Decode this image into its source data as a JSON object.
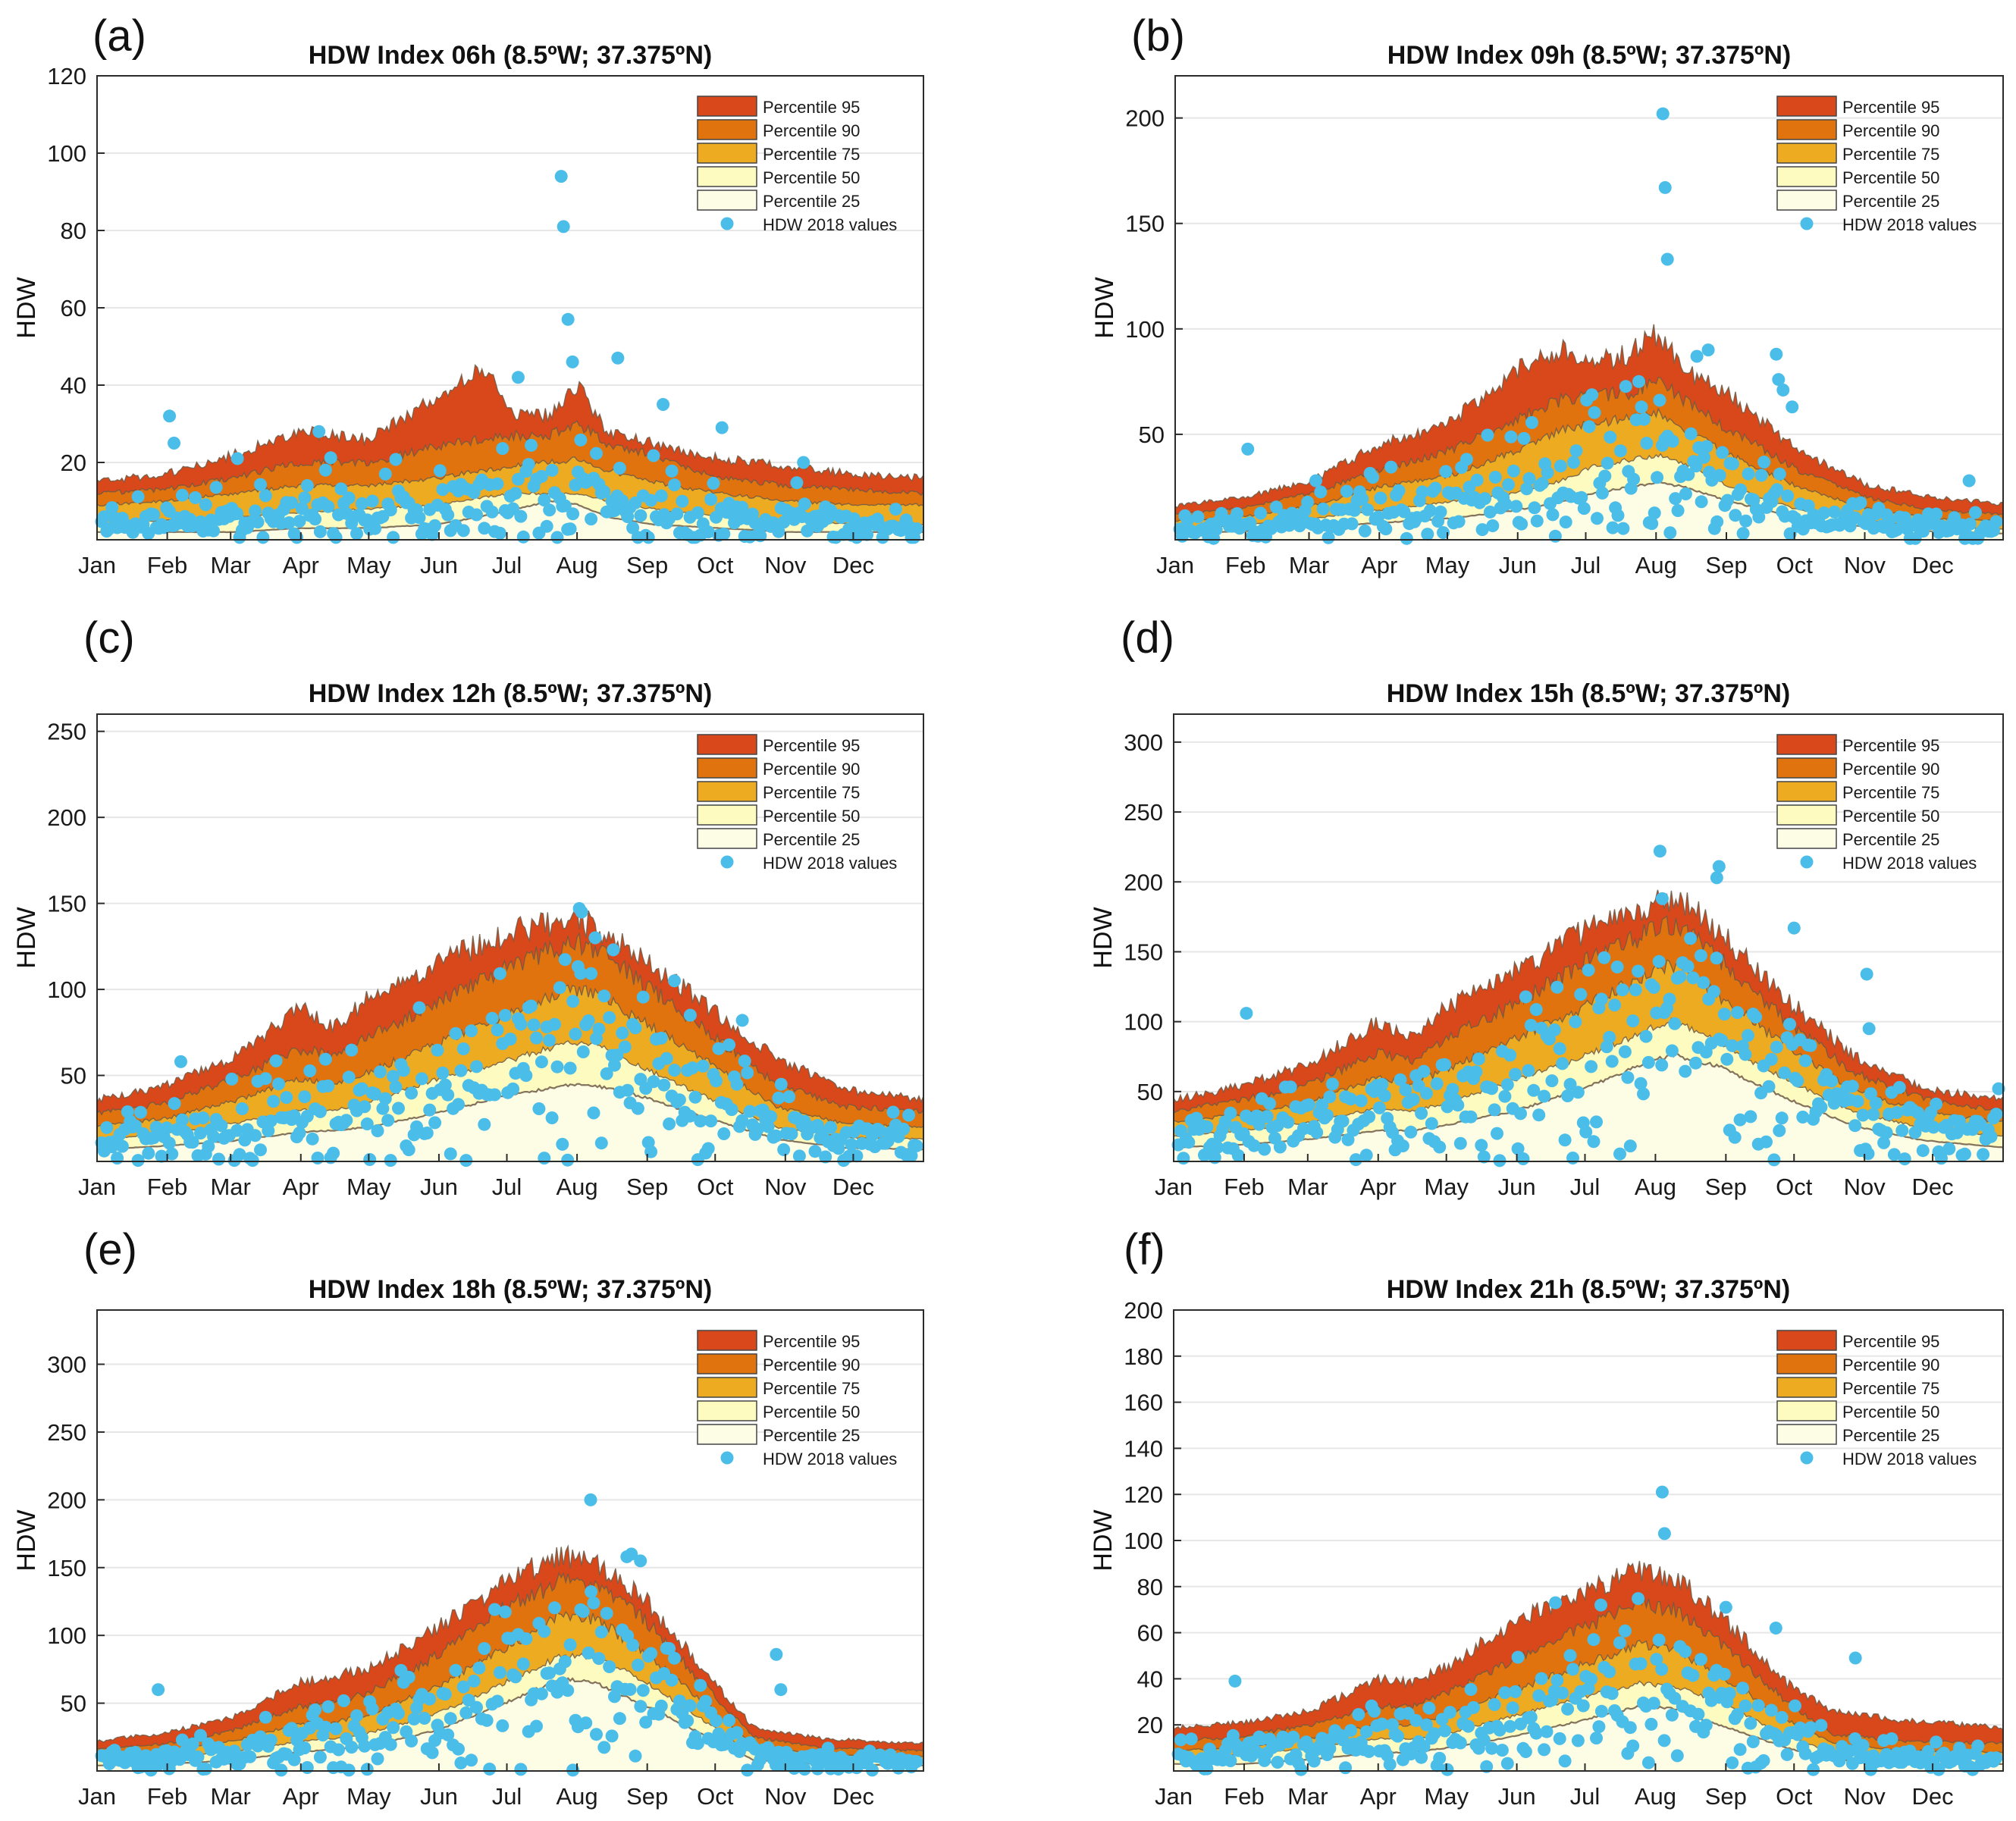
{
  "figure": {
    "months": [
      "Jan",
      "Feb",
      "Mar",
      "Apr",
      "May",
      "Jun",
      "Jul",
      "Aug",
      "Sep",
      "Oct",
      "Nov",
      "Dec"
    ],
    "ylabel": "HDW",
    "legend": [
      "Percentile 95",
      "Percentile 90",
      "Percentile 75",
      "Percentile 50",
      "Percentile 25",
      "HDW 2018 values"
    ],
    "colors": {
      "p95": "#d9481a",
      "p90": "#e0730e",
      "p75": "#edab22",
      "p50": "#fefbc0",
      "p25": "#fdfde6",
      "obs": "#4bbde9",
      "edge": "#6d5a46"
    }
  },
  "chart_data": [
    {
      "panel": "(a)",
      "type": "area",
      "title": "HDW Index 06h (8.5ºW; 37.375ºN)",
      "xlabel": "",
      "ylabel": "HDW",
      "ylim": [
        0,
        120
      ],
      "yticks": [
        20,
        40,
        60,
        80,
        100,
        120
      ],
      "day": [
        0,
        30,
        60,
        90,
        120,
        150,
        170,
        185,
        200,
        213,
        225,
        245,
        275,
        305,
        335,
        365
      ],
      "p25": [
        2,
        2,
        2,
        3,
        3,
        4,
        6,
        8,
        10,
        9,
        6,
        4,
        3,
        2,
        2,
        2
      ],
      "p50": [
        4,
        5,
        6,
        7,
        8,
        9,
        11,
        12,
        12,
        12,
        10,
        8,
        6,
        5,
        4,
        4
      ],
      "p75": [
        9,
        10,
        12,
        14,
        14,
        16,
        18,
        19,
        20,
        21,
        18,
        15,
        12,
        10,
        9,
        9
      ],
      "p90": [
        12,
        13,
        16,
        20,
        20,
        24,
        26,
        27,
        27,
        30,
        25,
        22,
        16,
        14,
        13,
        12
      ],
      "p95": [
        15,
        17,
        22,
        28,
        26,
        37,
        44,
        33,
        32,
        40,
        28,
        25,
        21,
        19,
        17,
        16
      ],
      "outliers": [
        [
          32,
          32
        ],
        [
          34,
          25
        ],
        [
          62,
          21
        ],
        [
          98,
          28
        ],
        [
          186,
          42
        ],
        [
          205,
          94
        ],
        [
          206,
          81
        ],
        [
          208,
          57
        ],
        [
          210,
          46
        ],
        [
          230,
          47
        ],
        [
          250,
          35
        ],
        [
          276,
          29
        ],
        [
          312,
          20
        ]
      ]
    },
    {
      "panel": "(b)",
      "type": "area",
      "title": "HDW Index 09h (8.5ºW; 37.375ºN)",
      "xlabel": "",
      "ylabel": "HDW",
      "ylim": [
        0,
        220
      ],
      "yticks": [
        50,
        100,
        150,
        200
      ],
      "day": [
        0,
        30,
        60,
        90,
        120,
        150,
        170,
        185,
        200,
        213,
        225,
        245,
        275,
        305,
        335,
        365
      ],
      "p25": [
        3,
        4,
        6,
        8,
        10,
        14,
        18,
        22,
        25,
        27,
        25,
        18,
        10,
        6,
        4,
        3
      ],
      "p50": [
        5,
        7,
        10,
        14,
        18,
        22,
        28,
        35,
        38,
        40,
        36,
        25,
        14,
        9,
        6,
        5
      ],
      "p75": [
        9,
        11,
        16,
        25,
        30,
        42,
        52,
        55,
        58,
        60,
        52,
        40,
        25,
        15,
        10,
        9
      ],
      "p90": [
        12,
        15,
        22,
        33,
        42,
        57,
        66,
        68,
        70,
        76,
        65,
        52,
        33,
        20,
        14,
        12
      ],
      "p95": [
        16,
        20,
        28,
        45,
        55,
        80,
        90,
        84,
        88,
        98,
        80,
        68,
        42,
        26,
        20,
        17
      ],
      "outliers": [
        [
          32,
          43
        ],
        [
          62,
          28
        ],
        [
          215,
          202
        ],
        [
          216,
          167
        ],
        [
          217,
          133
        ],
        [
          230,
          87
        ],
        [
          235,
          90
        ],
        [
          265,
          88
        ],
        [
          266,
          76
        ],
        [
          268,
          71
        ],
        [
          272,
          63
        ],
        [
          350,
          28
        ]
      ]
    },
    {
      "panel": "(c)",
      "type": "area",
      "title": "HDW Index 12h (8.5ºW; 37.375ºN)",
      "xlabel": "",
      "ylabel": "HDW",
      "ylim": [
        0,
        260
      ],
      "yticks": [
        50,
        100,
        150,
        200,
        250
      ],
      "day": [
        0,
        30,
        60,
        90,
        105,
        120,
        150,
        180,
        210,
        220,
        240,
        270,
        300,
        330,
        365
      ],
      "p25": [
        7,
        9,
        12,
        17,
        18,
        20,
        28,
        38,
        45,
        44,
        38,
        25,
        13,
        8,
        7
      ],
      "p50": [
        13,
        16,
        22,
        30,
        30,
        34,
        48,
        58,
        70,
        68,
        55,
        37,
        20,
        14,
        13
      ],
      "p75": [
        20,
        25,
        35,
        48,
        45,
        52,
        68,
        85,
        100,
        98,
        82,
        58,
        32,
        22,
        20
      ],
      "p90": [
        28,
        34,
        48,
        65,
        62,
        72,
        92,
        112,
        128,
        124,
        105,
        75,
        45,
        32,
        29
      ],
      "p95": [
        36,
        44,
        60,
        90,
        78,
        95,
        115,
        132,
        142,
        136,
        118,
        90,
        60,
        42,
        36
      ],
      "outliers": [
        [
          37,
          58
        ],
        [
          213,
          147
        ],
        [
          214,
          145
        ],
        [
          220,
          130
        ],
        [
          228,
          123
        ],
        [
          255,
          105
        ],
        [
          262,
          85
        ],
        [
          285,
          82
        ]
      ]
    },
    {
      "panel": "(d)",
      "type": "area",
      "title": "HDW Index 15h (8.5ºW; 37.375ºN)",
      "xlabel": "",
      "ylabel": "HDW",
      "ylim": [
        0,
        320
      ],
      "yticks": [
        50,
        100,
        150,
        200,
        250,
        300
      ],
      "day": [
        0,
        30,
        60,
        90,
        105,
        120,
        150,
        180,
        210,
        220,
        240,
        270,
        300,
        330,
        365
      ],
      "p25": [
        10,
        12,
        16,
        22,
        22,
        26,
        36,
        52,
        72,
        76,
        68,
        45,
        25,
        15,
        10
      ],
      "p50": [
        18,
        22,
        28,
        38,
        36,
        42,
        58,
        75,
        95,
        100,
        85,
        58,
        35,
        24,
        18
      ],
      "p75": [
        28,
        34,
        42,
        60,
        55,
        66,
        88,
        110,
        135,
        140,
        118,
        82,
        50,
        35,
        28
      ],
      "p90": [
        36,
        44,
        55,
        78,
        72,
        88,
        112,
        142,
        165,
        170,
        145,
        100,
        63,
        45,
        36
      ],
      "p95": [
        44,
        54,
        70,
        100,
        90,
        110,
        135,
        165,
        182,
        190,
        165,
        115,
        75,
        52,
        44
      ],
      "outliers": [
        [
          32,
          106
        ],
        [
          214,
          222
        ],
        [
          215,
          188
        ],
        [
          240,
          211
        ],
        [
          239,
          203
        ],
        [
          273,
          167
        ],
        [
          305,
          134
        ],
        [
          306,
          95
        ],
        [
          363,
          52
        ]
      ]
    },
    {
      "panel": "(e)",
      "type": "area",
      "title": "HDW Index 18h (8.5ºW; 37.375ºN)",
      "xlabel": "",
      "ylabel": "HDW",
      "ylim": [
        0,
        340
      ],
      "yticks": [
        50,
        100,
        150,
        200,
        250,
        300
      ],
      "day": [
        0,
        30,
        60,
        90,
        105,
        120,
        150,
        180,
        205,
        220,
        240,
        270,
        290,
        320,
        365
      ],
      "p25": [
        4,
        5,
        8,
        14,
        16,
        18,
        30,
        50,
        68,
        65,
        50,
        25,
        8,
        5,
        4
      ],
      "p50": [
        8,
        10,
        14,
        22,
        24,
        28,
        42,
        65,
        85,
        84,
        68,
        35,
        12,
        8,
        7
      ],
      "p75": [
        12,
        15,
        22,
        35,
        36,
        42,
        62,
        90,
        115,
        112,
        90,
        48,
        18,
        12,
        11
      ],
      "p90": [
        16,
        20,
        30,
        48,
        50,
        58,
        85,
        120,
        140,
        140,
        115,
        60,
        25,
        17,
        15
      ],
      "p95": [
        22,
        28,
        40,
        65,
        70,
        75,
        105,
        140,
        160,
        155,
        130,
        70,
        32,
        24,
        20
      ],
      "outliers": [
        [
          27,
          60
        ],
        [
          218,
          200
        ],
        [
          234,
          158
        ],
        [
          236,
          160
        ],
        [
          240,
          155
        ],
        [
          300,
          86
        ],
        [
          302,
          60
        ]
      ]
    },
    {
      "panel": "(f)",
      "type": "area",
      "title": "HDW Index 21h (8.5ºW; 37.375ºN)",
      "xlabel": "",
      "ylabel": "HDW",
      "ylim": [
        0,
        200
      ],
      "yticks": [
        20,
        40,
        60,
        80,
        100,
        120,
        140,
        160,
        180,
        200
      ],
      "day": [
        0,
        30,
        60,
        90,
        105,
        120,
        150,
        180,
        205,
        220,
        240,
        270,
        290,
        320,
        365
      ],
      "p25": [
        3,
        3,
        5,
        8,
        8,
        10,
        15,
        22,
        28,
        27,
        20,
        10,
        5,
        3,
        3
      ],
      "p50": [
        6,
        7,
        10,
        14,
        14,
        16,
        24,
        32,
        38,
        37,
        30,
        15,
        8,
        6,
        5
      ],
      "p75": [
        9,
        10,
        14,
        20,
        20,
        24,
        35,
        46,
        55,
        53,
        42,
        22,
        12,
        9,
        8
      ],
      "p90": [
        13,
        15,
        20,
        28,
        28,
        34,
        48,
        62,
        72,
        70,
        56,
        30,
        16,
        13,
        12
      ],
      "p95": [
        19,
        21,
        26,
        40,
        38,
        45,
        65,
        78,
        87,
        84,
        68,
        38,
        26,
        22,
        19
      ],
      "outliers": [
        [
          27,
          39
        ],
        [
          168,
          73
        ],
        [
          215,
          121
        ],
        [
          216,
          103
        ],
        [
          243,
          71
        ],
        [
          265,
          62
        ],
        [
          300,
          49
        ],
        [
          188,
          72
        ]
      ]
    }
  ]
}
